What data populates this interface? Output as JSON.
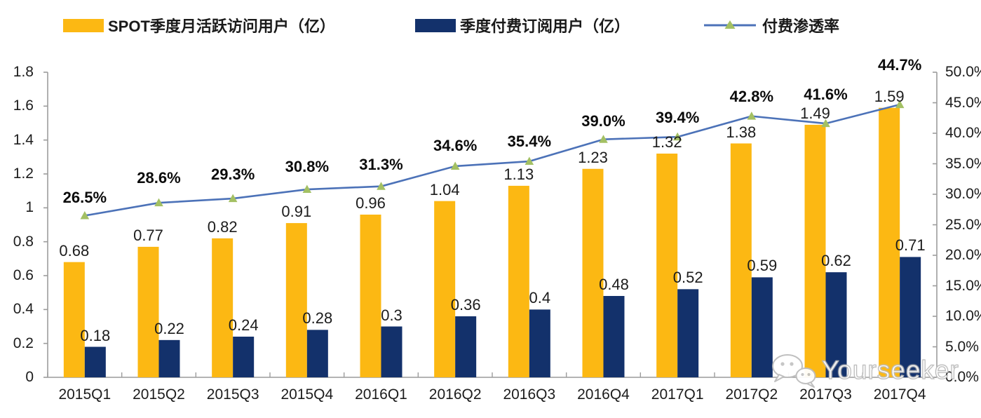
{
  "chart_data": {
    "type": "bar+line",
    "title": "",
    "legend_position": "top",
    "grid": false,
    "categories": [
      "2015Q1",
      "2015Q2",
      "2015Q3",
      "2015Q4",
      "2016Q1",
      "2016Q2",
      "2016Q3",
      "2016Q4",
      "2017Q1",
      "2017Q2",
      "2017Q3",
      "2017Q4"
    ],
    "series": [
      {
        "name": "SPOT季度月活跃访问用户（亿）",
        "type": "bar",
        "axis": "left",
        "color": "#FCB813",
        "values": [
          0.68,
          0.77,
          0.82,
          0.91,
          0.96,
          1.04,
          1.13,
          1.23,
          1.32,
          1.38,
          1.49,
          1.59
        ],
        "labels": [
          "0.68",
          "0.77",
          "0.82",
          "0.91",
          "0.96",
          "1.04",
          "1.13",
          "1.23",
          "1.32",
          "1.38",
          "1.49",
          "1.59"
        ]
      },
      {
        "name": "季度付费订阅用户（亿）",
        "type": "bar",
        "axis": "left",
        "color": "#13316B",
        "values": [
          0.18,
          0.22,
          0.24,
          0.28,
          0.3,
          0.36,
          0.4,
          0.48,
          0.52,
          0.59,
          0.62,
          0.71
        ],
        "labels": [
          "0.18",
          "0.22",
          "0.24",
          "0.28",
          "0.3",
          "0.36",
          "0.4",
          "0.48",
          "0.52",
          "0.59",
          "0.62",
          "0.71"
        ]
      },
      {
        "name": "付费渗透率",
        "type": "line",
        "axis": "right",
        "color": "#4C72B8",
        "marker": "triangle",
        "marker_color": "#A3C063",
        "values": [
          26.5,
          28.6,
          29.3,
          30.8,
          31.3,
          34.6,
          35.4,
          39.0,
          39.4,
          42.8,
          41.6,
          44.7
        ],
        "labels": [
          "26.5%",
          "28.6%",
          "29.3%",
          "30.8%",
          "31.3%",
          "34.6%",
          "35.4%",
          "39.0%",
          "39.4%",
          "42.8%",
          "41.6%",
          "44.7%"
        ]
      }
    ],
    "left_axis": {
      "min": 0,
      "max": 1.8,
      "step": 0.2,
      "tick_values": [
        0,
        0.2,
        0.4,
        0.6,
        0.8,
        1,
        1.2,
        1.4,
        1.6,
        1.8
      ],
      "tick_labels": [
        "0",
        "0.2",
        "0.4",
        "0.6",
        "0.8",
        "1",
        "1.2",
        "1.4",
        "1.6",
        "1.8"
      ]
    },
    "right_axis": {
      "min": 0,
      "max": 50,
      "step": 5,
      "tick_values": [
        0,
        5,
        10,
        15,
        20,
        25,
        30,
        35,
        40,
        45,
        50
      ],
      "tick_labels": [
        "0.0%",
        "5.0%",
        "10.0%",
        "15.0%",
        "20.0%",
        "25.0%",
        "30.0%",
        "35.0%",
        "40.0%",
        "45.0%",
        "50.0%"
      ]
    },
    "colors": {
      "axis": "#9C9C9C"
    }
  },
  "watermark": {
    "text": "Yourseeker",
    "icon": "wechat-icon"
  }
}
